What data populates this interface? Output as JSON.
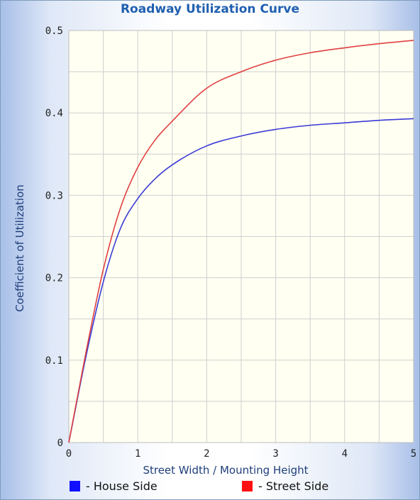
{
  "chart_data": {
    "type": "line",
    "title": "Roadway Utilization Curve",
    "xlabel": "Street Width / Mounting Height",
    "ylabel": "Coefficient of Utilization",
    "xlim": [
      0,
      5
    ],
    "ylim": [
      0,
      0.5
    ],
    "x_ticks": [
      "0",
      "1",
      "2",
      "3",
      "4",
      "5"
    ],
    "y_ticks": [
      "0",
      "0.1",
      "0.2",
      "0.3",
      "0.4",
      "0.5"
    ],
    "grid": true,
    "legend_position": "bottom",
    "background_color": "#fffff2",
    "grid_color": "#cfcfcf",
    "series": [
      {
        "name": "- House Side",
        "color": "#3a3ad6",
        "legend_color": "#1010ff",
        "x": [
          0,
          0.25,
          0.5,
          0.75,
          1.0,
          1.25,
          1.5,
          2.0,
          2.5,
          3.0,
          3.5,
          4.0,
          4.5,
          5.0
        ],
        "y": [
          0,
          0.105,
          0.195,
          0.26,
          0.296,
          0.32,
          0.337,
          0.36,
          0.372,
          0.38,
          0.385,
          0.388,
          0.391,
          0.393
        ]
      },
      {
        "name": "- Street Side",
        "color": "#e04040",
        "legend_color": "#ff1010",
        "x": [
          0,
          0.25,
          0.5,
          0.75,
          1.0,
          1.25,
          1.5,
          2.0,
          2.5,
          3.0,
          3.5,
          4.0,
          4.5,
          5.0
        ],
        "y": [
          0,
          0.11,
          0.21,
          0.285,
          0.334,
          0.367,
          0.39,
          0.43,
          0.45,
          0.464,
          0.473,
          0.479,
          0.484,
          0.488
        ]
      }
    ]
  }
}
